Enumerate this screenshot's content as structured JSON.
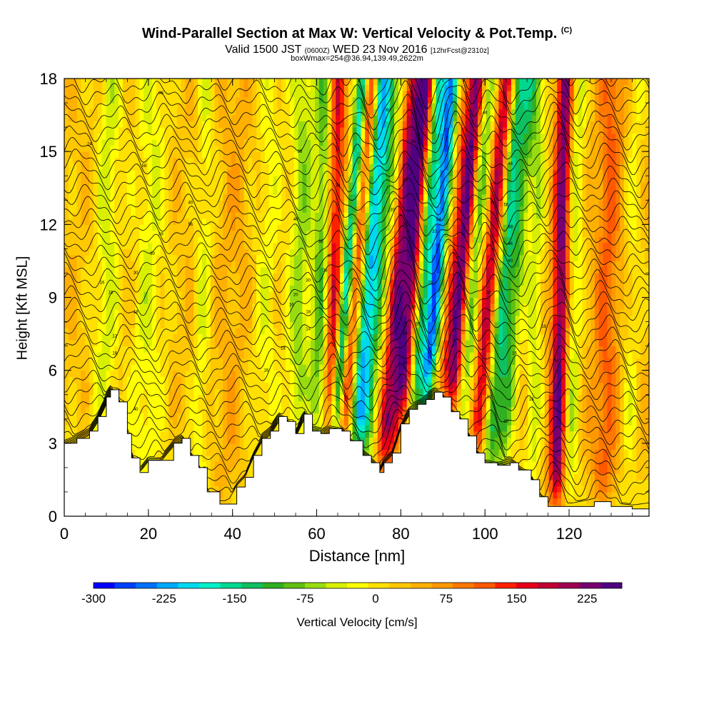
{
  "chart_data": {
    "type": "heatmap",
    "title": "Wind-Parallel Section at Max W: Vertical Velocity & Pot.Temp.",
    "title_units": "(C)",
    "subtitle_pre": "Valid 1500 JST",
    "subtitle_z": "(0600Z)",
    "subtitle_post": "WED 23 Nov 2016",
    "subtitle_fcst": "[12hrFcst@2310z]",
    "subsubtitle": "boxWmax=254@36.94,139.49,2622m",
    "xlabel": "Distance [nm]",
    "ylabel": "Height [Kft MSL]",
    "xlim": [
      0,
      139
    ],
    "ylim": [
      0,
      18
    ],
    "x_ticks": [
      "0",
      "20",
      "40",
      "60",
      "80",
      "100",
      "120"
    ],
    "y_ticks": [
      "0",
      "3",
      "6",
      "9",
      "12",
      "15",
      "18"
    ],
    "colorbar": {
      "label": "Vertical Velocity [cm/s]",
      "range": [
        -300,
        262
      ],
      "tick_labels": [
        "-300",
        "-225",
        "-150",
        "-75",
        "0",
        "75",
        "150",
        "225"
      ],
      "tick_values": [
        -300,
        -225,
        -150,
        -75,
        0,
        75,
        150,
        225
      ],
      "colors": [
        "#0000ff",
        "#0040ff",
        "#0070ff",
        "#00a8ff",
        "#00d8f0",
        "#00f0c8",
        "#00d890",
        "#10c060",
        "#30b020",
        "#60c010",
        "#98dc10",
        "#d8f000",
        "#ffff00",
        "#ffe000",
        "#ffc800",
        "#ffb000",
        "#ff9800",
        "#ff7800",
        "#ff5800",
        "#ff2000",
        "#e80018",
        "#c00030",
        "#a00050",
        "#780070",
        "#500080"
      ]
    },
    "bands": [
      {
        "x": 10,
        "w": 3,
        "v": -70
      },
      {
        "x": 20,
        "w": 4,
        "v": -60
      },
      {
        "x": 33,
        "w": 2,
        "v": -55
      },
      {
        "x": 40,
        "w": 3,
        "v": 20
      },
      {
        "x": 48,
        "w": 3,
        "v": -50
      },
      {
        "x": 56,
        "w": 3,
        "v": -90
      },
      {
        "x": 61,
        "w": 2,
        "v": -120
      },
      {
        "x": 64,
        "w": 2,
        "v": 140
      },
      {
        "x": 67,
        "w": 1.5,
        "v": -260
      },
      {
        "x": 69,
        "w": 2,
        "v": 220
      },
      {
        "x": 72,
        "w": 3,
        "v": -260
      },
      {
        "x": 76,
        "w": 2,
        "v": -40
      },
      {
        "x": 79,
        "w": 2,
        "v": 170
      },
      {
        "x": 82,
        "w": 2,
        "v": 200
      },
      {
        "x": 85,
        "w": 1.5,
        "v": -150
      },
      {
        "x": 88,
        "w": 2,
        "v": -290
      },
      {
        "x": 91,
        "w": 2,
        "v": 60
      },
      {
        "x": 94,
        "w": 2,
        "v": 210
      },
      {
        "x": 97,
        "w": 2,
        "v": -120
      },
      {
        "x": 101,
        "w": 2,
        "v": 170
      },
      {
        "x": 104,
        "w": 2,
        "v": -160
      },
      {
        "x": 107,
        "w": 2,
        "v": -120
      },
      {
        "x": 112,
        "w": 2,
        "v": -70
      },
      {
        "x": 118,
        "w": 2,
        "v": 210
      },
      {
        "x": 121,
        "w": 2,
        "v": -80
      },
      {
        "x": 129,
        "w": 3,
        "v": 80
      },
      {
        "x": 135,
        "w": 2,
        "v": -40
      }
    ],
    "terrain": [
      [
        0,
        3.0
      ],
      [
        3,
        3.2
      ],
      [
        6,
        3.5
      ],
      [
        8,
        4.1
      ],
      [
        10,
        4.9
      ],
      [
        11,
        5.2
      ],
      [
        13,
        4.7
      ],
      [
        15,
        3.4
      ],
      [
        16,
        2.4
      ],
      [
        18,
        1.8
      ],
      [
        20,
        2.3
      ],
      [
        23,
        2.3
      ],
      [
        26,
        3.0
      ],
      [
        28,
        3.2
      ],
      [
        30,
        2.5
      ],
      [
        32,
        2.0
      ],
      [
        34,
        1.0
      ],
      [
        37,
        0.5
      ],
      [
        39,
        0.5
      ],
      [
        41,
        1.2
      ],
      [
        43,
        1.6
      ],
      [
        45,
        2.5
      ],
      [
        47,
        3.2
      ],
      [
        49,
        3.5
      ],
      [
        51,
        4.1
      ],
      [
        53,
        3.9
      ],
      [
        55,
        3.4
      ],
      [
        57,
        4.2
      ],
      [
        59,
        3.5
      ],
      [
        61,
        3.4
      ],
      [
        63,
        3.6
      ],
      [
        66,
        3.5
      ],
      [
        68,
        3.1
      ],
      [
        71,
        2.5
      ],
      [
        73,
        2.2
      ],
      [
        75,
        1.8
      ],
      [
        76,
        2.2
      ],
      [
        78,
        2.6
      ],
      [
        80,
        3.8
      ],
      [
        82,
        4.4
      ],
      [
        84,
        4.6
      ],
      [
        86,
        4.8
      ],
      [
        88,
        5.1
      ],
      [
        90,
        4.9
      ],
      [
        92,
        4.3
      ],
      [
        94,
        4.0
      ],
      [
        96,
        3.3
      ],
      [
        98,
        2.6
      ],
      [
        100,
        2.2
      ],
      [
        103,
        2.1
      ],
      [
        106,
        2.2
      ],
      [
        108,
        1.9
      ],
      [
        111,
        1.5
      ],
      [
        113,
        0.8
      ],
      [
        115,
        0.4
      ],
      [
        121,
        0.4
      ],
      [
        126,
        0.6
      ],
      [
        130,
        0.4
      ],
      [
        135,
        0.3
      ],
      [
        139,
        0.4
      ]
    ],
    "isentropes": [
      10,
      12,
      14,
      16,
      18,
      20,
      22,
      24,
      26,
      28,
      30,
      32,
      34,
      36,
      38,
      40,
      42,
      44,
      46,
      48,
      50,
      52,
      54,
      56,
      58,
      60,
      62,
      64,
      66,
      68,
      70,
      72,
      74,
      76,
      78,
      80,
      82,
      84
    ],
    "contour_labels": [
      {
        "x": 23,
        "y": 17.4,
        "text": "88"
      },
      {
        "x": 6,
        "y": 15.3,
        "text": "24"
      },
      {
        "x": 19,
        "y": 14.4,
        "text": "58"
      },
      {
        "x": 30,
        "y": 12.9,
        "text": "40"
      },
      {
        "x": 30,
        "y": 12.0,
        "text": "56"
      },
      {
        "x": 23,
        "y": 11.6,
        "text": "58"
      },
      {
        "x": 21,
        "y": 10.8,
        "text": "30"
      },
      {
        "x": 17,
        "y": 10.0,
        "text": "30"
      },
      {
        "x": 9,
        "y": 9.6,
        "text": "16"
      },
      {
        "x": 11,
        "y": 9.2,
        "text": "18"
      },
      {
        "x": 17,
        "y": 8.4,
        "text": "18"
      },
      {
        "x": 12,
        "y": 7.4,
        "text": "12"
      },
      {
        "x": 12,
        "y": 6.7,
        "text": "18"
      },
      {
        "x": 17,
        "y": 4.4,
        "text": "40"
      },
      {
        "x": 56,
        "y": 15.0,
        "text": "38"
      },
      {
        "x": 65,
        "y": 13.6,
        "text": "38"
      },
      {
        "x": 55,
        "y": 12.2,
        "text": "40"
      },
      {
        "x": 61,
        "y": 11.3,
        "text": "38"
      },
      {
        "x": 63,
        "y": 10.7,
        "text": "40"
      },
      {
        "x": 62,
        "y": 10.1,
        "text": "38"
      },
      {
        "x": 58,
        "y": 9.7,
        "text": "30"
      },
      {
        "x": 55,
        "y": 9.1,
        "text": "20"
      },
      {
        "x": 54,
        "y": 8.7,
        "text": "16"
      },
      {
        "x": 58,
        "y": 8.4,
        "text": "18"
      },
      {
        "x": 58,
        "y": 7.7,
        "text": "14"
      },
      {
        "x": 52,
        "y": 6.9,
        "text": "18"
      },
      {
        "x": 48,
        "y": 6.0,
        "text": "16"
      },
      {
        "x": 77,
        "y": 16.7,
        "text": "60"
      },
      {
        "x": 83,
        "y": 15.4,
        "text": "32"
      },
      {
        "x": 81,
        "y": 13.8,
        "text": "20"
      },
      {
        "x": 78,
        "y": 12.6,
        "text": "30"
      },
      {
        "x": 81,
        "y": 12.0,
        "text": "20"
      },
      {
        "x": 89,
        "y": 12.2,
        "text": "34"
      },
      {
        "x": 88,
        "y": 11.7,
        "text": "33"
      },
      {
        "x": 87,
        "y": 9.6,
        "text": "28"
      },
      {
        "x": 83,
        "y": 8.6,
        "text": "20"
      },
      {
        "x": 81,
        "y": 7.9,
        "text": "22"
      },
      {
        "x": 81,
        "y": 7.5,
        "text": "24"
      },
      {
        "x": 84,
        "y": 7.9,
        "text": "26"
      },
      {
        "x": 75,
        "y": 6.9,
        "text": "26"
      },
      {
        "x": 81,
        "y": 6.3,
        "text": "19"
      },
      {
        "x": 100,
        "y": 16.6,
        "text": "48"
      },
      {
        "x": 98,
        "y": 15.1,
        "text": "64"
      },
      {
        "x": 106,
        "y": 14.5,
        "text": "46"
      },
      {
        "x": 102,
        "y": 12.9,
        "text": "60"
      },
      {
        "x": 105,
        "y": 12.8,
        "text": "56"
      },
      {
        "x": 106,
        "y": 11.9,
        "text": "48"
      },
      {
        "x": 106,
        "y": 11.2,
        "text": "46"
      },
      {
        "x": 106,
        "y": 10.5,
        "text": "40"
      },
      {
        "x": 101,
        "y": 9.2,
        "text": "40"
      },
      {
        "x": 114,
        "y": 7.8,
        "text": "19"
      },
      {
        "x": 107,
        "y": 6.7,
        "text": "16"
      },
      {
        "x": 117,
        "y": 6.4,
        "text": "14"
      },
      {
        "x": 101,
        "y": 4.9,
        "text": "10"
      },
      {
        "x": 111,
        "y": 4.8,
        "text": "18"
      },
      {
        "x": 105,
        "y": 3.9,
        "text": "10"
      }
    ]
  }
}
